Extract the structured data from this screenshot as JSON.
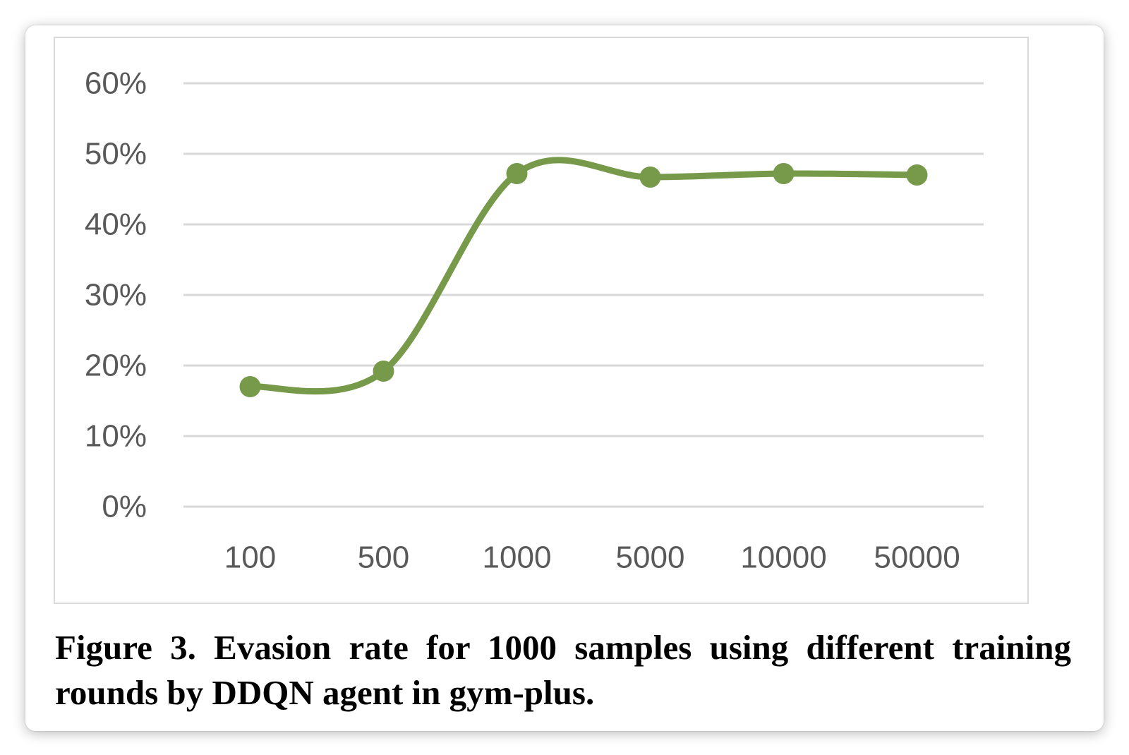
{
  "chart_data": {
    "type": "line",
    "categories": [
      "100",
      "500",
      "1000",
      "5000",
      "10000",
      "50000"
    ],
    "series": [
      {
        "values": [
          17.0,
          19.2,
          47.2,
          46.7,
          47.2,
          47.0
        ]
      }
    ],
    "y_ticks": [
      "0%",
      "10%",
      "20%",
      "30%",
      "40%",
      "50%",
      "60%"
    ],
    "ylim": [
      0,
      60
    ],
    "smooth": true,
    "grid": "horizontal",
    "legend": "none",
    "colors": {
      "line": "#76994a",
      "grid": "#d9d9d9",
      "tick": "#595959"
    }
  },
  "caption": "Figure 3. Evasion rate for 1000 samples using different training rounds by DDQN agent in gym-plus."
}
